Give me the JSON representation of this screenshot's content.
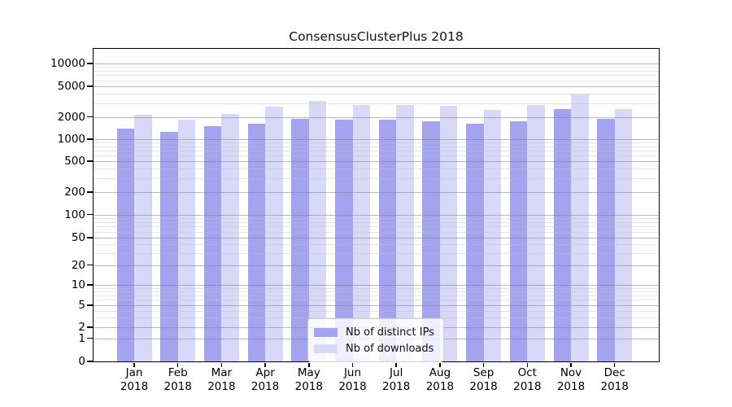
{
  "chart_data": {
    "type": "bar",
    "title": "ConsensusClusterPlus 2018",
    "categories": [
      "Jan 2018",
      "Feb 2018",
      "Mar 2018",
      "Apr 2018",
      "May 2018",
      "Jun 2018",
      "Jul 2018",
      "Aug 2018",
      "Sep 2018",
      "Oct 2018",
      "Nov 2018",
      "Dec 2018"
    ],
    "series": [
      {
        "name": "Nb of distinct IPs",
        "color": "#a3a3f0",
        "values": [
          1380,
          1260,
          1510,
          1610,
          1890,
          1830,
          1850,
          1760,
          1610,
          1760,
          2540,
          1870
        ]
      },
      {
        "name": "Nb of downloads",
        "color": "#d8d8f8",
        "values": [
          2150,
          1810,
          2200,
          2710,
          3200,
          2880,
          2830,
          2760,
          2480,
          2820,
          3900,
          2540
        ]
      }
    ],
    "yticks": [
      0,
      1,
      2,
      5,
      10,
      20,
      50,
      100,
      200,
      500,
      1000,
      2000,
      5000,
      10000
    ],
    "yscale": "pseudo-log (0,1,2,5,10,... ticks)",
    "ylim": [
      0,
      10000
    ],
    "grid": "horizontal major and minor gridlines",
    "legend_position": "inside, bottom center"
  }
}
